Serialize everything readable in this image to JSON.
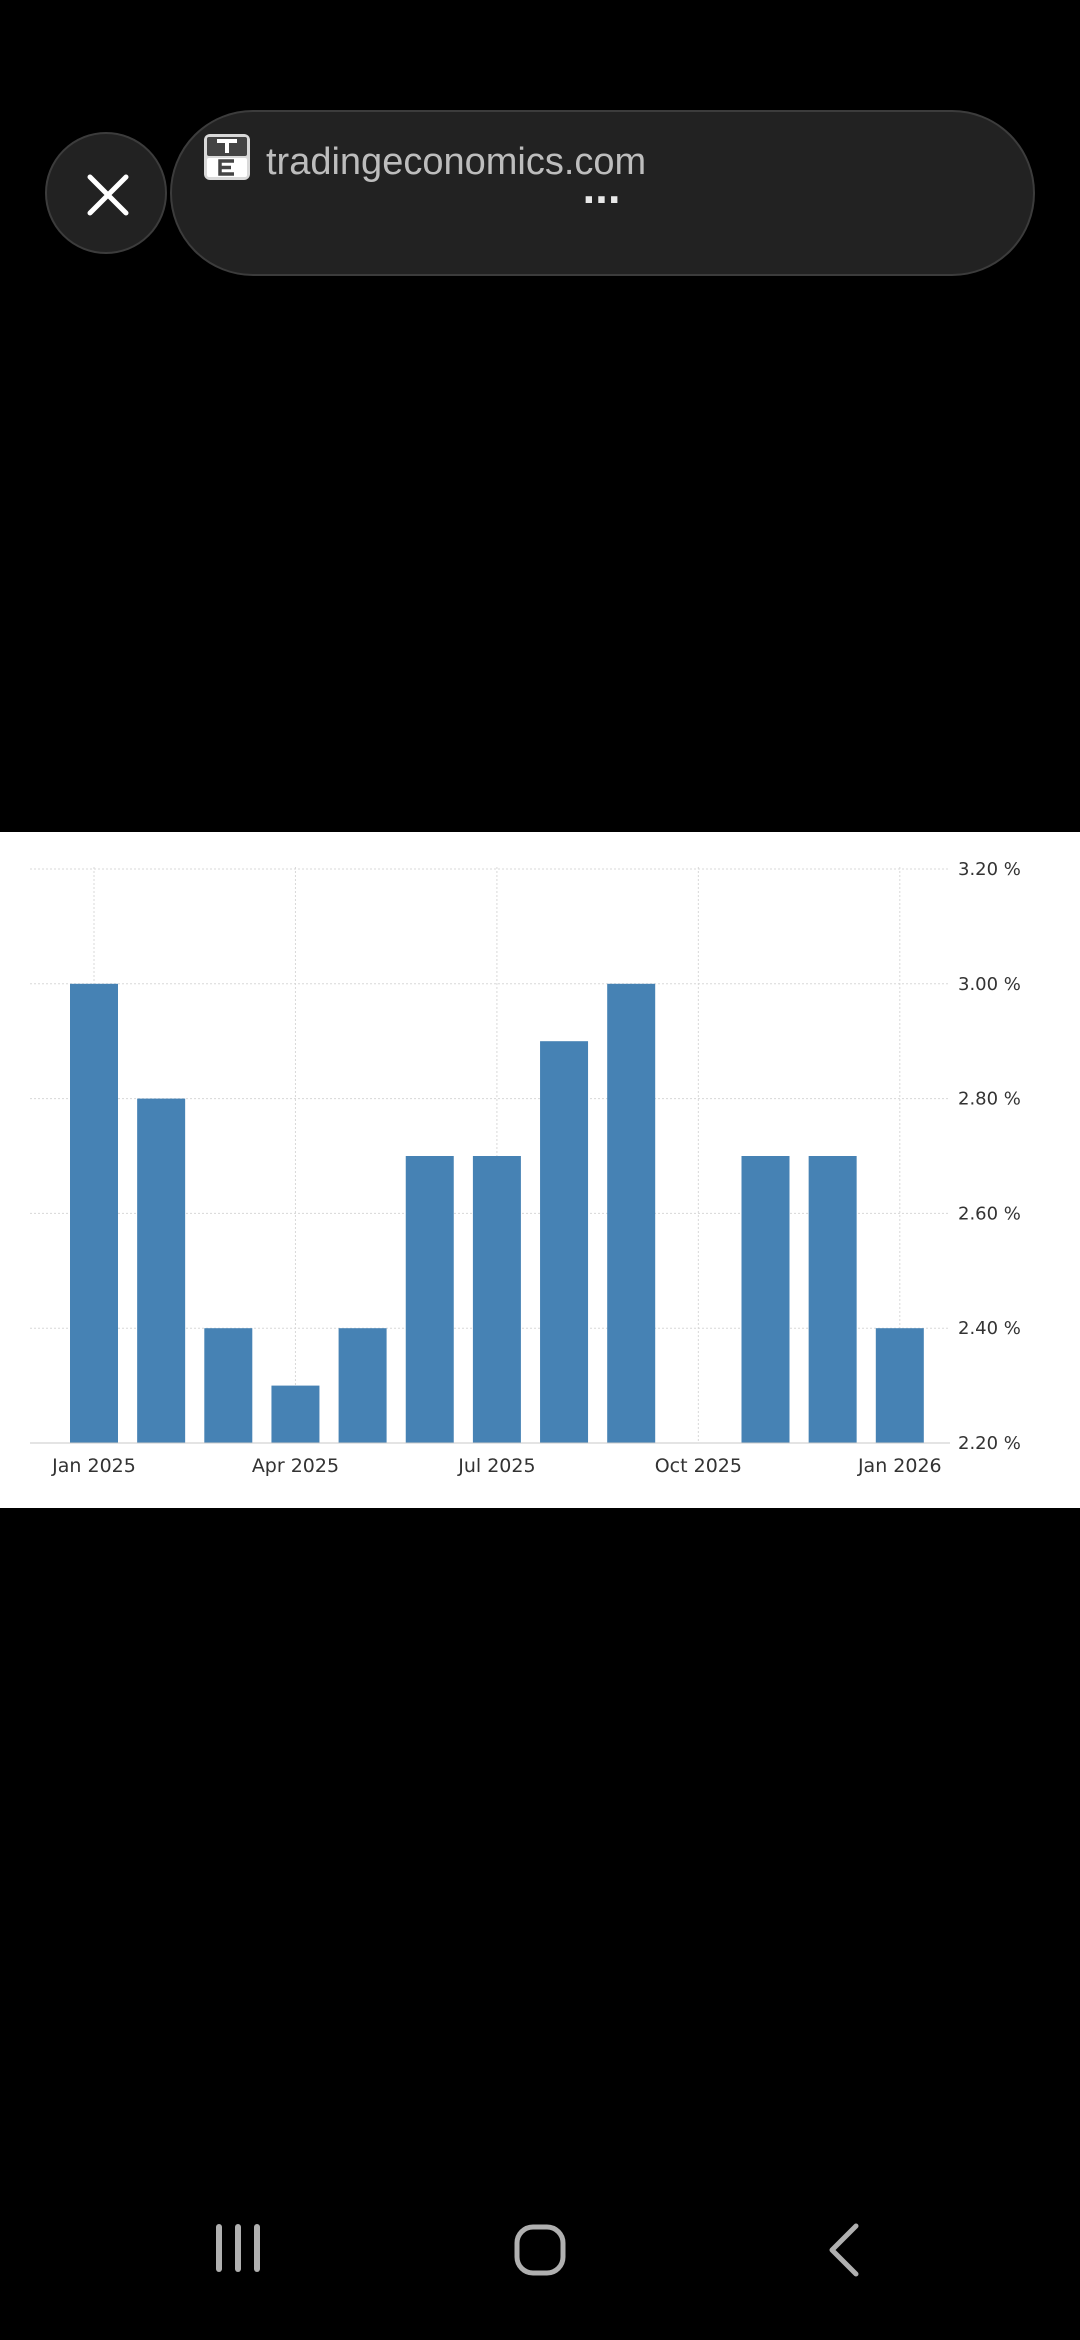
{
  "browser": {
    "url_text": "tradingeconomics.com",
    "more_label": "...",
    "site_icon": "te-logo-icon",
    "close_icon": "close-icon"
  },
  "chart_data": {
    "type": "bar",
    "categories": [
      "Jan 2025",
      "Feb 2025",
      "Mar 2025",
      "Apr 2025",
      "May 2025",
      "Jun 2025",
      "Jul 2025",
      "Aug 2025",
      "Sep 2025",
      "Oct 2025",
      "Nov 2025",
      "Dec 2025",
      "Jan 2026"
    ],
    "values": [
      3.0,
      2.8,
      2.4,
      2.3,
      2.4,
      2.7,
      2.7,
      2.9,
      3.0,
      2.2,
      2.7,
      2.7,
      2.4
    ],
    "x_tick_labels": [
      "Jan 2025",
      "Apr 2025",
      "Jul 2025",
      "Oct 2025",
      "Jan 2026"
    ],
    "y_tick_labels": [
      "3.20 %",
      "3.00 %",
      "2.80 %",
      "2.60 %",
      "2.40 %",
      "2.20 %"
    ],
    "y_ticks": [
      3.2,
      3.0,
      2.8,
      2.6,
      2.4,
      2.2
    ],
    "ylim": [
      2.2,
      3.2
    ],
    "y_axis_side": "right",
    "grid": true,
    "bar_color": "#4682b4",
    "title": "",
    "xlabel": "",
    "ylabel": ""
  },
  "navbar": {
    "recents_icon": "recent-apps-icon",
    "home_icon": "home-icon",
    "back_icon": "back-icon"
  }
}
